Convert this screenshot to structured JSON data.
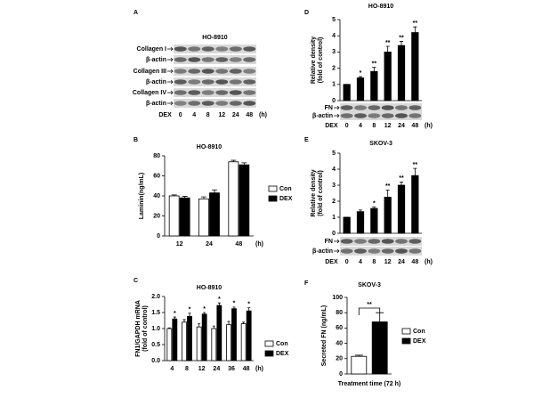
{
  "chart_data": [
    {
      "type": "blot",
      "panel": "A",
      "title": "HO-8910",
      "rows": [
        "Collagen I",
        "β-actin",
        "Collagen III",
        "β-actin",
        "Collagen IV",
        "β-actin"
      ],
      "treatment": "DEX",
      "categories": [
        "0",
        "4",
        "8",
        "12",
        "24",
        "48"
      ],
      "x_unit": "(h)"
    },
    {
      "type": "bar",
      "panel": "B",
      "title": "HO-8910",
      "ylabel": [
        "Laminin(ng/mL)"
      ],
      "categories": [
        "12",
        "24",
        "48"
      ],
      "x_unit": "(h)",
      "series": [
        {
          "name": "Con",
          "color": "#ffffff",
          "values": [
            40,
            37,
            74
          ],
          "errors": [
            1,
            2,
            1.5
          ]
        },
        {
          "name": "DEX",
          "color": "#000000",
          "values": [
            38,
            43,
            71
          ],
          "errors": [
            1.5,
            3,
            2
          ]
        }
      ],
      "ylim": [
        0,
        80
      ],
      "yticks": [
        0,
        20,
        40,
        60,
        80
      ]
    },
    {
      "type": "bar",
      "panel": "C",
      "title": "HO-8910",
      "ylabel": [
        "FN1/GAPDH mRNA",
        "(fold of control)"
      ],
      "categories": [
        "4",
        "8",
        "12",
        "24",
        "36",
        "48"
      ],
      "x_unit": "(h)",
      "series": [
        {
          "name": "Con",
          "color": "#ffffff",
          "values": [
            1.0,
            1.2,
            1.05,
            1.0,
            1.12,
            1.15
          ],
          "errors": [
            0.02,
            0.08,
            0.1,
            0.08,
            0.1,
            0.05
          ]
        },
        {
          "name": "DEX",
          "color": "#000000",
          "values": [
            1.3,
            1.38,
            1.45,
            1.72,
            1.62,
            1.55
          ],
          "errors": [
            0.06,
            0.1,
            0.05,
            0.08,
            0.05,
            0.1
          ],
          "significance": [
            "*",
            "*",
            "*",
            "*",
            "*",
            "*"
          ]
        }
      ],
      "ylim": [
        0,
        2.0
      ],
      "yticks": [
        {
          "value": 0,
          "label": "0.0"
        },
        {
          "value": 0.5,
          "label": "0.5"
        },
        {
          "value": 1,
          "label": "1.0"
        },
        {
          "value": 1.5,
          "label": "1.5"
        },
        {
          "value": 2,
          "label": "2.0"
        }
      ]
    },
    {
      "type": "bar",
      "panel": "D",
      "title": "HO-8910",
      "ylabel": [
        "Relative density",
        "(fold of control)"
      ],
      "categories": [
        "0",
        "4",
        "8",
        "12",
        "24",
        "48"
      ],
      "x_unit": "(h)",
      "color": "#000000",
      "values": [
        1,
        1.4,
        1.8,
        3.0,
        3.4,
        4.2
      ],
      "errors": [
        0,
        0.08,
        0.25,
        0.35,
        0.25,
        0.35
      ],
      "significance": [
        null,
        "*",
        "**",
        "**",
        "**",
        "**"
      ],
      "ylim": [
        0,
        5
      ],
      "yticks": [
        0,
        1,
        2,
        3,
        4,
        5
      ],
      "blot": {
        "rows": [
          "FN",
          "β-actin"
        ],
        "treatment": "DEX"
      }
    },
    {
      "type": "bar",
      "panel": "E",
      "title": "SKOV-3",
      "ylabel": [
        "Relative density",
        "(fold of control)"
      ],
      "categories": [
        "0",
        "4",
        "8",
        "12",
        "24",
        "48"
      ],
      "x_unit": "(h)",
      "color": "#000000",
      "values": [
        1,
        1.35,
        1.55,
        2.25,
        3.0,
        3.6
      ],
      "errors": [
        0,
        0.1,
        0.08,
        0.45,
        0.2,
        0.45
      ],
      "significance": [
        null,
        null,
        "*",
        "**",
        "**",
        "**"
      ],
      "ylim": [
        0,
        5
      ],
      "yticks": [
        0,
        1,
        2,
        3,
        4,
        5
      ],
      "blot": {
        "rows": [
          "FN",
          "β-actin"
        ],
        "treatment": "DEX"
      }
    },
    {
      "type": "bar",
      "panel": "F",
      "title": "SKOV-3",
      "ylabel": [
        "Secreted FN (ng/mL)"
      ],
      "xlabel": "Treatment time (72 h)",
      "series": [
        {
          "name": "Con",
          "color": "#ffffff",
          "values": [
            23
          ],
          "errors": [
            1.5
          ]
        },
        {
          "name": "DEX",
          "color": "#000000",
          "values": [
            68
          ],
          "errors": [
            12
          ]
        }
      ],
      "comparison": "**",
      "ylim": [
        0,
        100
      ],
      "yticks": [
        0,
        20,
        40,
        60,
        80,
        100
      ]
    }
  ]
}
